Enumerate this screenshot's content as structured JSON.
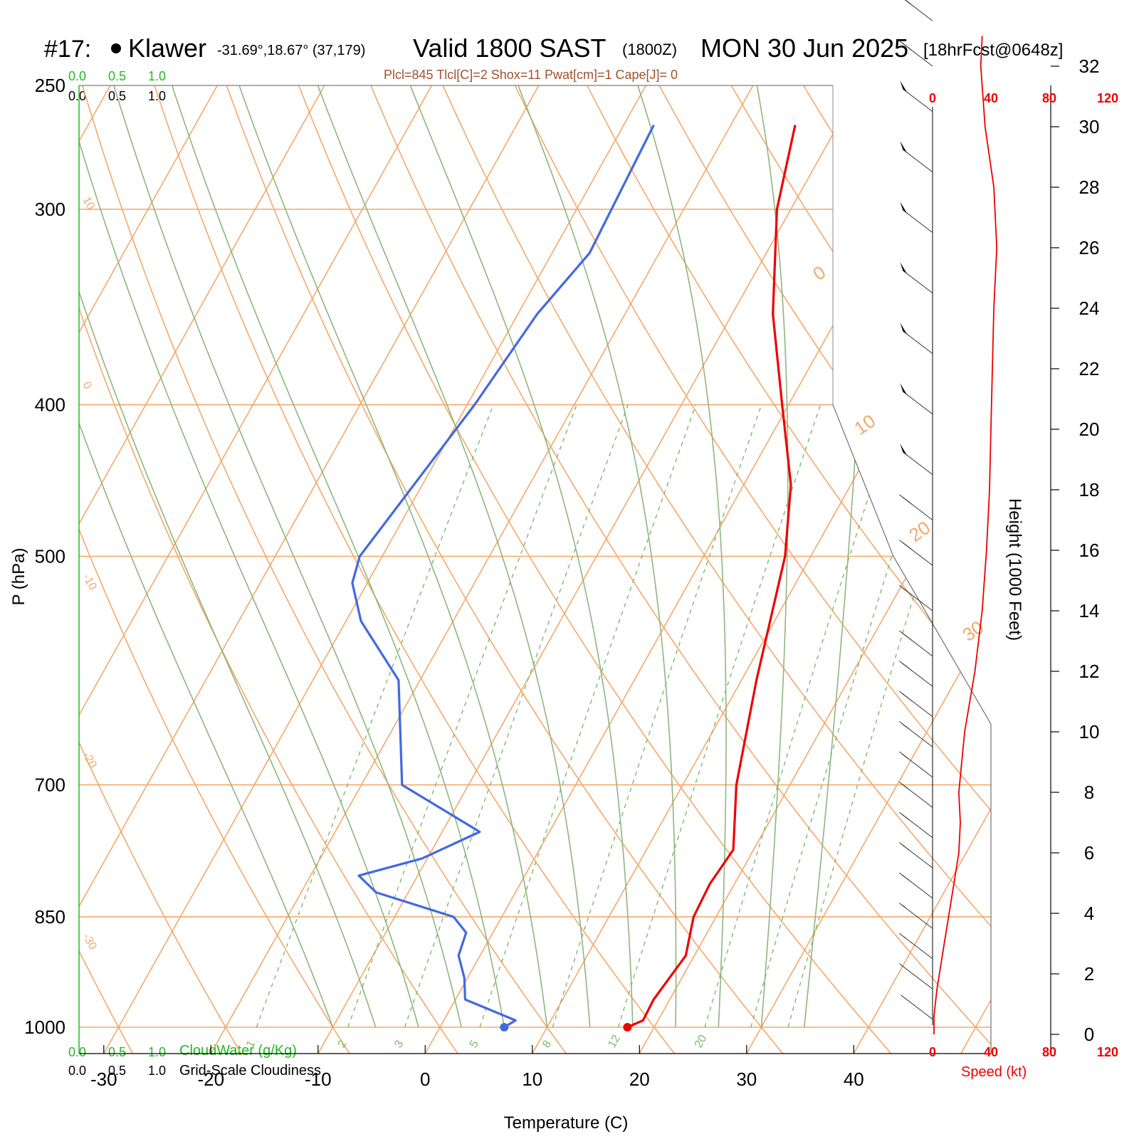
{
  "header": {
    "station_no": "#17:",
    "station_name": "Klawer",
    "coords": "-31.69°,18.67° (37,179)",
    "valid_main": "Valid 1800 SAST",
    "valid_z": "(1800Z)",
    "valid_date": "MON 30 Jun 2025",
    "fcst": "[18hrFcst@0648z]",
    "indices": "Plcl=845 Tlcl[C]=2 Shox=11 Pwat[cm]=1 Cape[J]= 0"
  },
  "colors": {
    "temperature": "#ee0000",
    "dewpoint": "#4169e1",
    "isotherm": "#f5a86a",
    "dry_adiabat": "#f5a86a",
    "moist_adiabat": "#8db67e",
    "mixing_ratio": "#7cba6a",
    "cloud_water_label": "#22bb22",
    "speed": "#ee0000",
    "indices_text": "#a0522d"
  },
  "cloud_scale_top": {
    "green": [
      "0.0",
      "0.5",
      "1.0"
    ],
    "black": [
      "0.0",
      "0.5",
      "1.0"
    ]
  },
  "cloud_scale_bottom": {
    "green": [
      "0.0",
      "0.5",
      "1.0"
    ],
    "black": [
      "0.0",
      "0.5",
      "1.0"
    ],
    "green_label": "CloudWater (g/Kg)",
    "black_label": "Grid-Scale Cloudiness"
  },
  "chart_data": {
    "type": "line",
    "subtype": "skew-t log-p sounding",
    "xlabel": "Temperature (C)",
    "ylabel": "P (hPa)",
    "right_ylabel": "Height (1000 Feet)",
    "x_ticks": [
      -30,
      -20,
      -10,
      0,
      10,
      20,
      30,
      40
    ],
    "p_levels": [
      250,
      300,
      400,
      500,
      700,
      850,
      1000
    ],
    "height_ticks": [
      0,
      2,
      4,
      6,
      8,
      10,
      12,
      14,
      16,
      18,
      20,
      22,
      24,
      26,
      28,
      30,
      32
    ],
    "speed_ticks": [
      "0",
      "40",
      "80",
      "120"
    ],
    "speed_label": "Speed (kt)",
    "isotherm_labels": [
      "10",
      "0",
      "-10",
      "-20",
      "-30"
    ],
    "right_labels": [
      "0",
      "10",
      "20",
      "30"
    ],
    "mixing_ratio_labels": [
      "1",
      "2",
      "3",
      "5",
      "8",
      "12",
      "20"
    ],
    "series": [
      {
        "name": "Temperature",
        "points": [
          [
            1000,
            17.5
          ],
          [
            990,
            18.6
          ],
          [
            960,
            18.5
          ],
          [
            900,
            19.2
          ],
          [
            850,
            17.9
          ],
          [
            810,
            17.7
          ],
          [
            770,
            18.1
          ],
          [
            700,
            15.0
          ],
          [
            600,
            11.4
          ],
          [
            500,
            7.6
          ],
          [
            450,
            4.4
          ],
          [
            400,
            -0.6
          ],
          [
            350,
            -6.2
          ],
          [
            300,
            -11.3
          ],
          [
            265,
            -14.0
          ]
        ]
      },
      {
        "name": "Dewpoint",
        "points": [
          [
            1000,
            6.0
          ],
          [
            990,
            6.7
          ],
          [
            960,
            0.9
          ],
          [
            930,
            -0.3
          ],
          [
            900,
            -2.0
          ],
          [
            870,
            -2.5
          ],
          [
            850,
            -4.5
          ],
          [
            820,
            -13.0
          ],
          [
            800,
            -15.5
          ],
          [
            780,
            -10.5
          ],
          [
            750,
            -6.5
          ],
          [
            700,
            -16.2
          ],
          [
            600,
            -22.0
          ],
          [
            550,
            -28.6
          ],
          [
            520,
            -31.4
          ],
          [
            500,
            -32.1
          ],
          [
            400,
            -29.3
          ],
          [
            350,
            -28.2
          ],
          [
            320,
            -26.5
          ],
          [
            265,
            -27.2
          ]
        ]
      }
    ],
    "wind_speed_profile": {
      "name": "Wind speed",
      "points": [
        [
          0,
          1
        ],
        [
          0.6,
          1
        ],
        [
          1.5,
          3
        ],
        [
          3,
          8
        ],
        [
          4.5,
          13
        ],
        [
          6,
          18
        ],
        [
          7,
          19
        ],
        [
          8,
          18
        ],
        [
          10,
          22
        ],
        [
          12,
          29
        ],
        [
          14,
          34
        ],
        [
          16,
          37
        ],
        [
          18,
          39
        ],
        [
          20,
          40
        ],
        [
          22,
          41
        ],
        [
          24,
          42
        ],
        [
          26,
          44
        ],
        [
          28,
          42
        ],
        [
          30,
          36
        ],
        [
          32,
          33
        ],
        [
          33,
          34
        ]
      ]
    },
    "wind_barbs": [
      {
        "h": 0.5,
        "kt": 5
      },
      {
        "h": 1.5,
        "kt": 10
      },
      {
        "h": 2.5,
        "kt": 15
      },
      {
        "h": 3.5,
        "kt": 20
      },
      {
        "h": 4.5,
        "kt": 25
      },
      {
        "h": 5.5,
        "kt": 25
      },
      {
        "h": 6.5,
        "kt": 30
      },
      {
        "h": 7.5,
        "kt": 30
      },
      {
        "h": 8.5,
        "kt": 30
      },
      {
        "h": 9.5,
        "kt": 30
      },
      {
        "h": 10.5,
        "kt": 35
      },
      {
        "h": 11.5,
        "kt": 35
      },
      {
        "h": 12.5,
        "kt": 35
      },
      {
        "h": 14,
        "kt": 35
      },
      {
        "h": 15.5,
        "kt": 40
      },
      {
        "h": 17,
        "kt": 40
      },
      {
        "h": 18.5,
        "kt": 55
      },
      {
        "h": 20.5,
        "kt": 55
      },
      {
        "h": 22.5,
        "kt": 55
      },
      {
        "h": 24.5,
        "kt": 55
      },
      {
        "h": 26.5,
        "kt": 55
      },
      {
        "h": 28.5,
        "kt": 55
      },
      {
        "h": 30.5,
        "kt": 55
      },
      {
        "h": 32,
        "kt": 40
      },
      {
        "h": 33.5,
        "kt": 40
      }
    ]
  }
}
